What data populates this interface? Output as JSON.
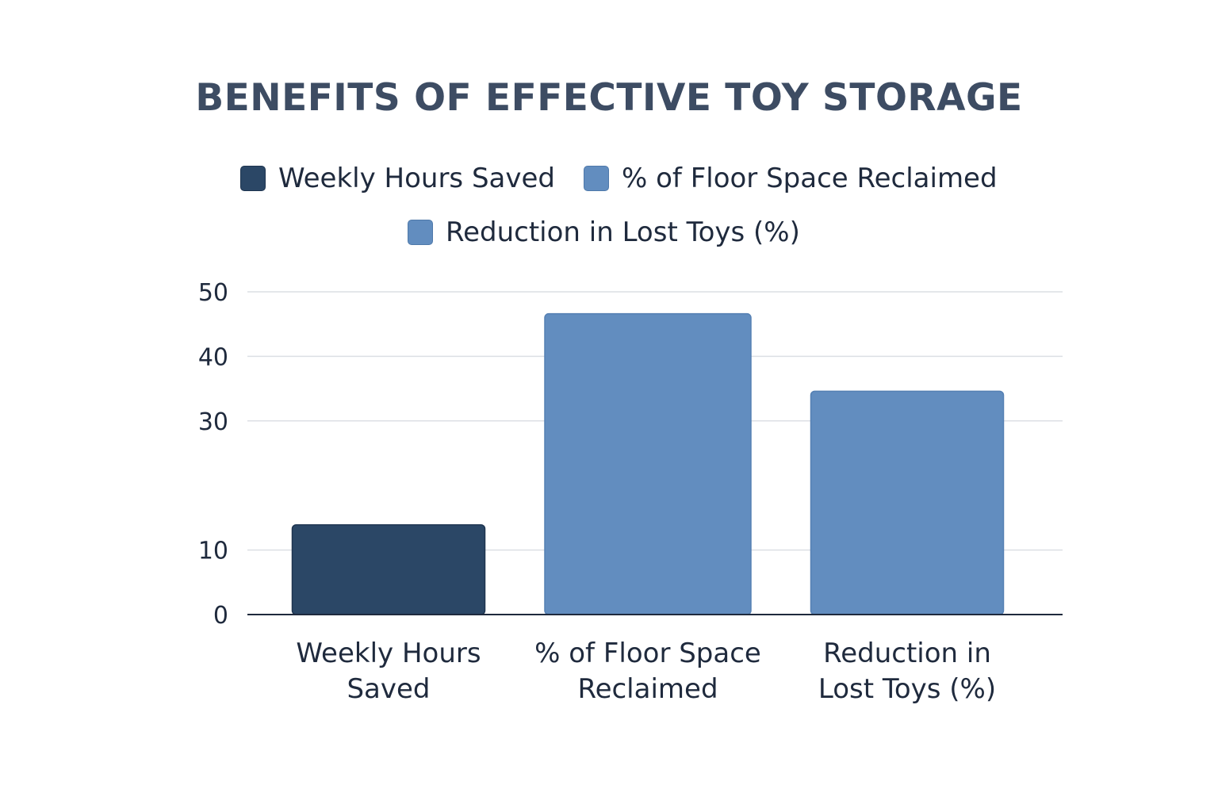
{
  "chart_data": {
    "type": "bar",
    "title": "BENEFITS OF EFFECTIVE TOY STORAGE",
    "xlabel": "",
    "ylabel": "",
    "ylim": [
      0,
      50
    ],
    "yticks": [
      0,
      10,
      30,
      40,
      50
    ],
    "grid": true,
    "legend_position": "top",
    "categories": [
      [
        "Weekly Hours",
        "Saved"
      ],
      [
        "% of Floor Space",
        "Reclaimed"
      ],
      [
        "Reduction in",
        "Lost Toys (%)"
      ]
    ],
    "series": [
      {
        "name": "Weekly Hours Saved",
        "values": [
          13.9,
          null,
          null
        ],
        "color": "#2b4766"
      },
      {
        "name": "% of Floor Space Reclaimed",
        "values": [
          null,
          46.6,
          null
        ],
        "color": "#628dbf"
      },
      {
        "name": "Reduction in Lost Toys (%)",
        "values": [
          null,
          null,
          34.6
        ],
        "color": "#628dbf"
      }
    ],
    "colors": {
      "title": "#3d4c63",
      "text": "#1f2a3d",
      "grid": "#dcdfe4",
      "axis": "#1f2a3d"
    }
  }
}
